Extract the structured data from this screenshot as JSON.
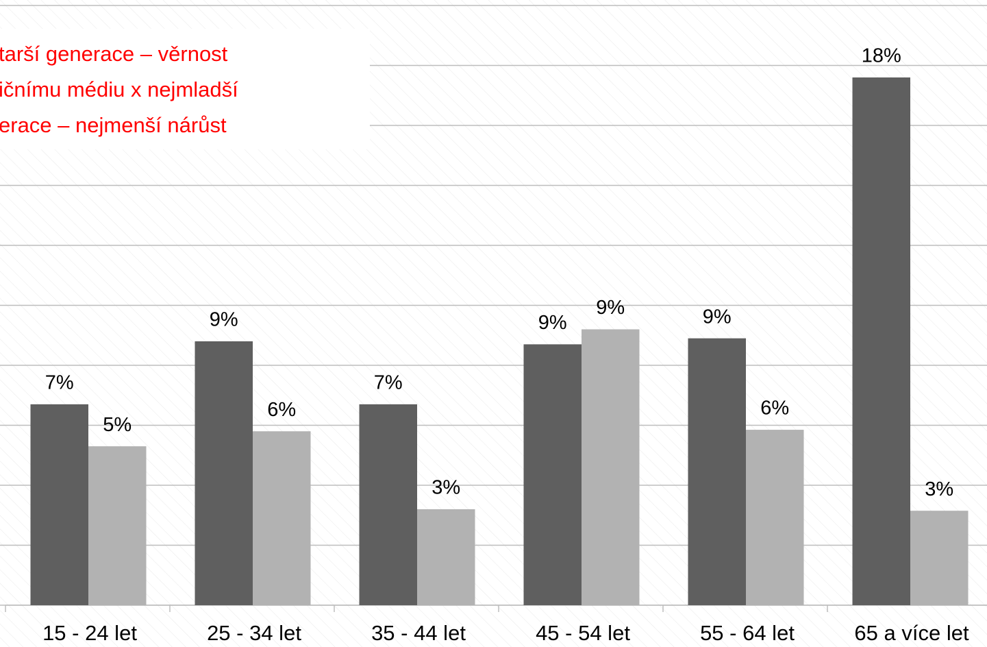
{
  "chart_data": {
    "type": "bar",
    "annotation": [
      "tarší generace – věrnost",
      "ičnímu médiu x nejmladší",
      "erace – nejmenší nárůst"
    ],
    "categories": [
      "15 - 24 let",
      "25 - 34 let",
      "35 - 44 let",
      "45 - 54 let",
      "55 - 64 let",
      "65 a více let"
    ],
    "series": [
      {
        "color": "#5f5f5f",
        "values": [
          6.7,
          8.8,
          6.7,
          8.7,
          8.9,
          17.6
        ],
        "value_labels": [
          "7%",
          "9%",
          "7%",
          "9%",
          "9%",
          "18%"
        ]
      },
      {
        "color": "#b2b2b2",
        "values": [
          5.3,
          5.8,
          3.2,
          9.2,
          5.85,
          3.15
        ],
        "value_labels": [
          "5%",
          "6%",
          "3%",
          "9%",
          "6%",
          "3%"
        ]
      }
    ],
    "ylim": [
      0,
      20
    ],
    "yticks": [
      0,
      2,
      4,
      6,
      8,
      10,
      12,
      14,
      16,
      18,
      20
    ],
    "grid": true
  }
}
